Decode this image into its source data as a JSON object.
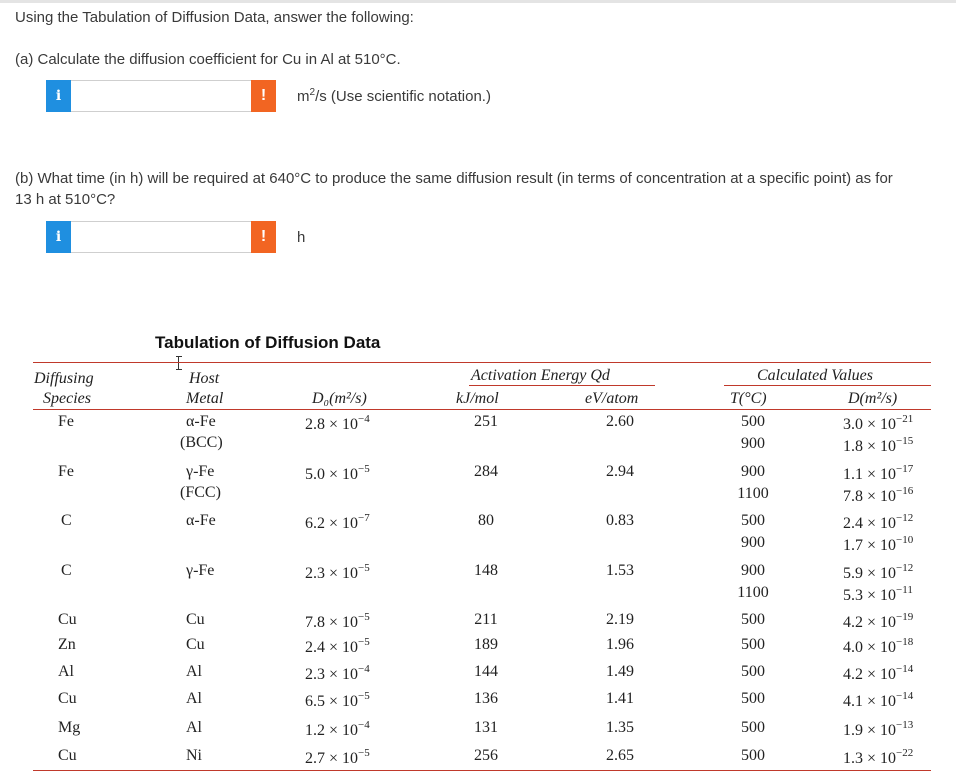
{
  "intro": "Using the Tabulation of Diffusion Data, answer the following:",
  "part_a": {
    "question": "(a) Calculate the diffusion coefficient for Cu in Al at 510°C.",
    "input_value": "",
    "info_label": "i",
    "warn_label": "!",
    "unit_pre": "m",
    "unit_sup": "2",
    "unit_post": "/s (Use scientific notation.)"
  },
  "part_b": {
    "question_line1": "(b) What time (in h) will be required at 640°C to produce the same diffusion result (in terms of concentration at a specific point) as for",
    "question_line2": "13 h at 510°C?",
    "input_value": "",
    "info_label": "i",
    "warn_label": "!",
    "unit": "h"
  },
  "table": {
    "title": "Tabulation of Diffusion Data",
    "headers": {
      "species_1": "Diffusing",
      "species_2": "Species",
      "host_1": "Host",
      "host_2": "Metal",
      "d0": "D₀(m²/s)",
      "activation": "Activation Energy Qd",
      "kj": "kJ/mol",
      "ev": "eV/atom",
      "calc": "Calculated Values",
      "temp": "T(°C)",
      "d": "D(m²/s)"
    },
    "rows": [
      {
        "species": "Fe",
        "host": "α-Fe",
        "host2": "(BCC)",
        "d0_base": "2.8 × 10",
        "d0_exp": "−4",
        "kj": "251",
        "ev": "2.60",
        "temps": [
          "500",
          "900"
        ],
        "d_base": [
          "3.0 × 10",
          "1.8 × 10"
        ],
        "d_exp": [
          "−21",
          "−15"
        ]
      },
      {
        "species": "Fe",
        "host": "γ-Fe",
        "host2": "(FCC)",
        "d0_base": "5.0 × 10",
        "d0_exp": "−5",
        "kj": "284",
        "ev": "2.94",
        "temps": [
          "900",
          "1100"
        ],
        "d_base": [
          "1.1 × 10",
          "7.8 × 10"
        ],
        "d_exp": [
          "−17",
          "−16"
        ]
      },
      {
        "species": "C",
        "host": "α-Fe",
        "host2": "",
        "d0_base": "6.2 × 10",
        "d0_exp": "−7",
        "kj": "80",
        "ev": "0.83",
        "temps": [
          "500",
          "900"
        ],
        "d_base": [
          "2.4 × 10",
          "1.7 × 10"
        ],
        "d_exp": [
          "−12",
          "−10"
        ]
      },
      {
        "species": "C",
        "host": "γ-Fe",
        "host2": "",
        "d0_base": "2.3 × 10",
        "d0_exp": "−5",
        "kj": "148",
        "ev": "1.53",
        "temps": [
          "900",
          "1100"
        ],
        "d_base": [
          "5.9 × 10",
          "5.3 × 10"
        ],
        "d_exp": [
          "−12",
          "−11"
        ]
      },
      {
        "species": "Cu",
        "host": "Cu",
        "host2": "",
        "d0_base": "7.8 × 10",
        "d0_exp": "−5",
        "kj": "211",
        "ev": "2.19",
        "temps": [
          "500"
        ],
        "d_base": [
          "4.2 × 10"
        ],
        "d_exp": [
          "−19"
        ]
      },
      {
        "species": "Zn",
        "host": "Cu",
        "host2": "",
        "d0_base": "2.4 × 10",
        "d0_exp": "−5",
        "kj": "189",
        "ev": "1.96",
        "temps": [
          "500"
        ],
        "d_base": [
          "4.0 × 10"
        ],
        "d_exp": [
          "−18"
        ]
      },
      {
        "species": "Al",
        "host": "Al",
        "host2": "",
        "d0_base": "2.3 × 10",
        "d0_exp": "−4",
        "kj": "144",
        "ev": "1.49",
        "temps": [
          "500"
        ],
        "d_base": [
          "4.2 × 10"
        ],
        "d_exp": [
          "−14"
        ]
      },
      {
        "species": "Cu",
        "host": "Al",
        "host2": "",
        "d0_base": "6.5 × 10",
        "d0_exp": "−5",
        "kj": "136",
        "ev": "1.41",
        "temps": [
          "500"
        ],
        "d_base": [
          "4.1 × 10"
        ],
        "d_exp": [
          "−14"
        ]
      },
      {
        "species": "Mg",
        "host": "Al",
        "host2": "",
        "d0_base": "1.2 × 10",
        "d0_exp": "−4",
        "kj": "131",
        "ev": "1.35",
        "temps": [
          "500"
        ],
        "d_base": [
          "1.9 × 10"
        ],
        "d_exp": [
          "−13"
        ]
      },
      {
        "species": "Cu",
        "host": "Ni",
        "host2": "",
        "d0_base": "2.7 × 10",
        "d0_exp": "−5",
        "kj": "256",
        "ev": "2.65",
        "temps": [
          "500"
        ],
        "d_base": [
          "1.3 × 10"
        ],
        "d_exp": [
          "−22"
        ]
      }
    ]
  },
  "colors": {
    "info": "#1f8fe0",
    "warn": "#f26522",
    "rule": "#c0392b"
  }
}
